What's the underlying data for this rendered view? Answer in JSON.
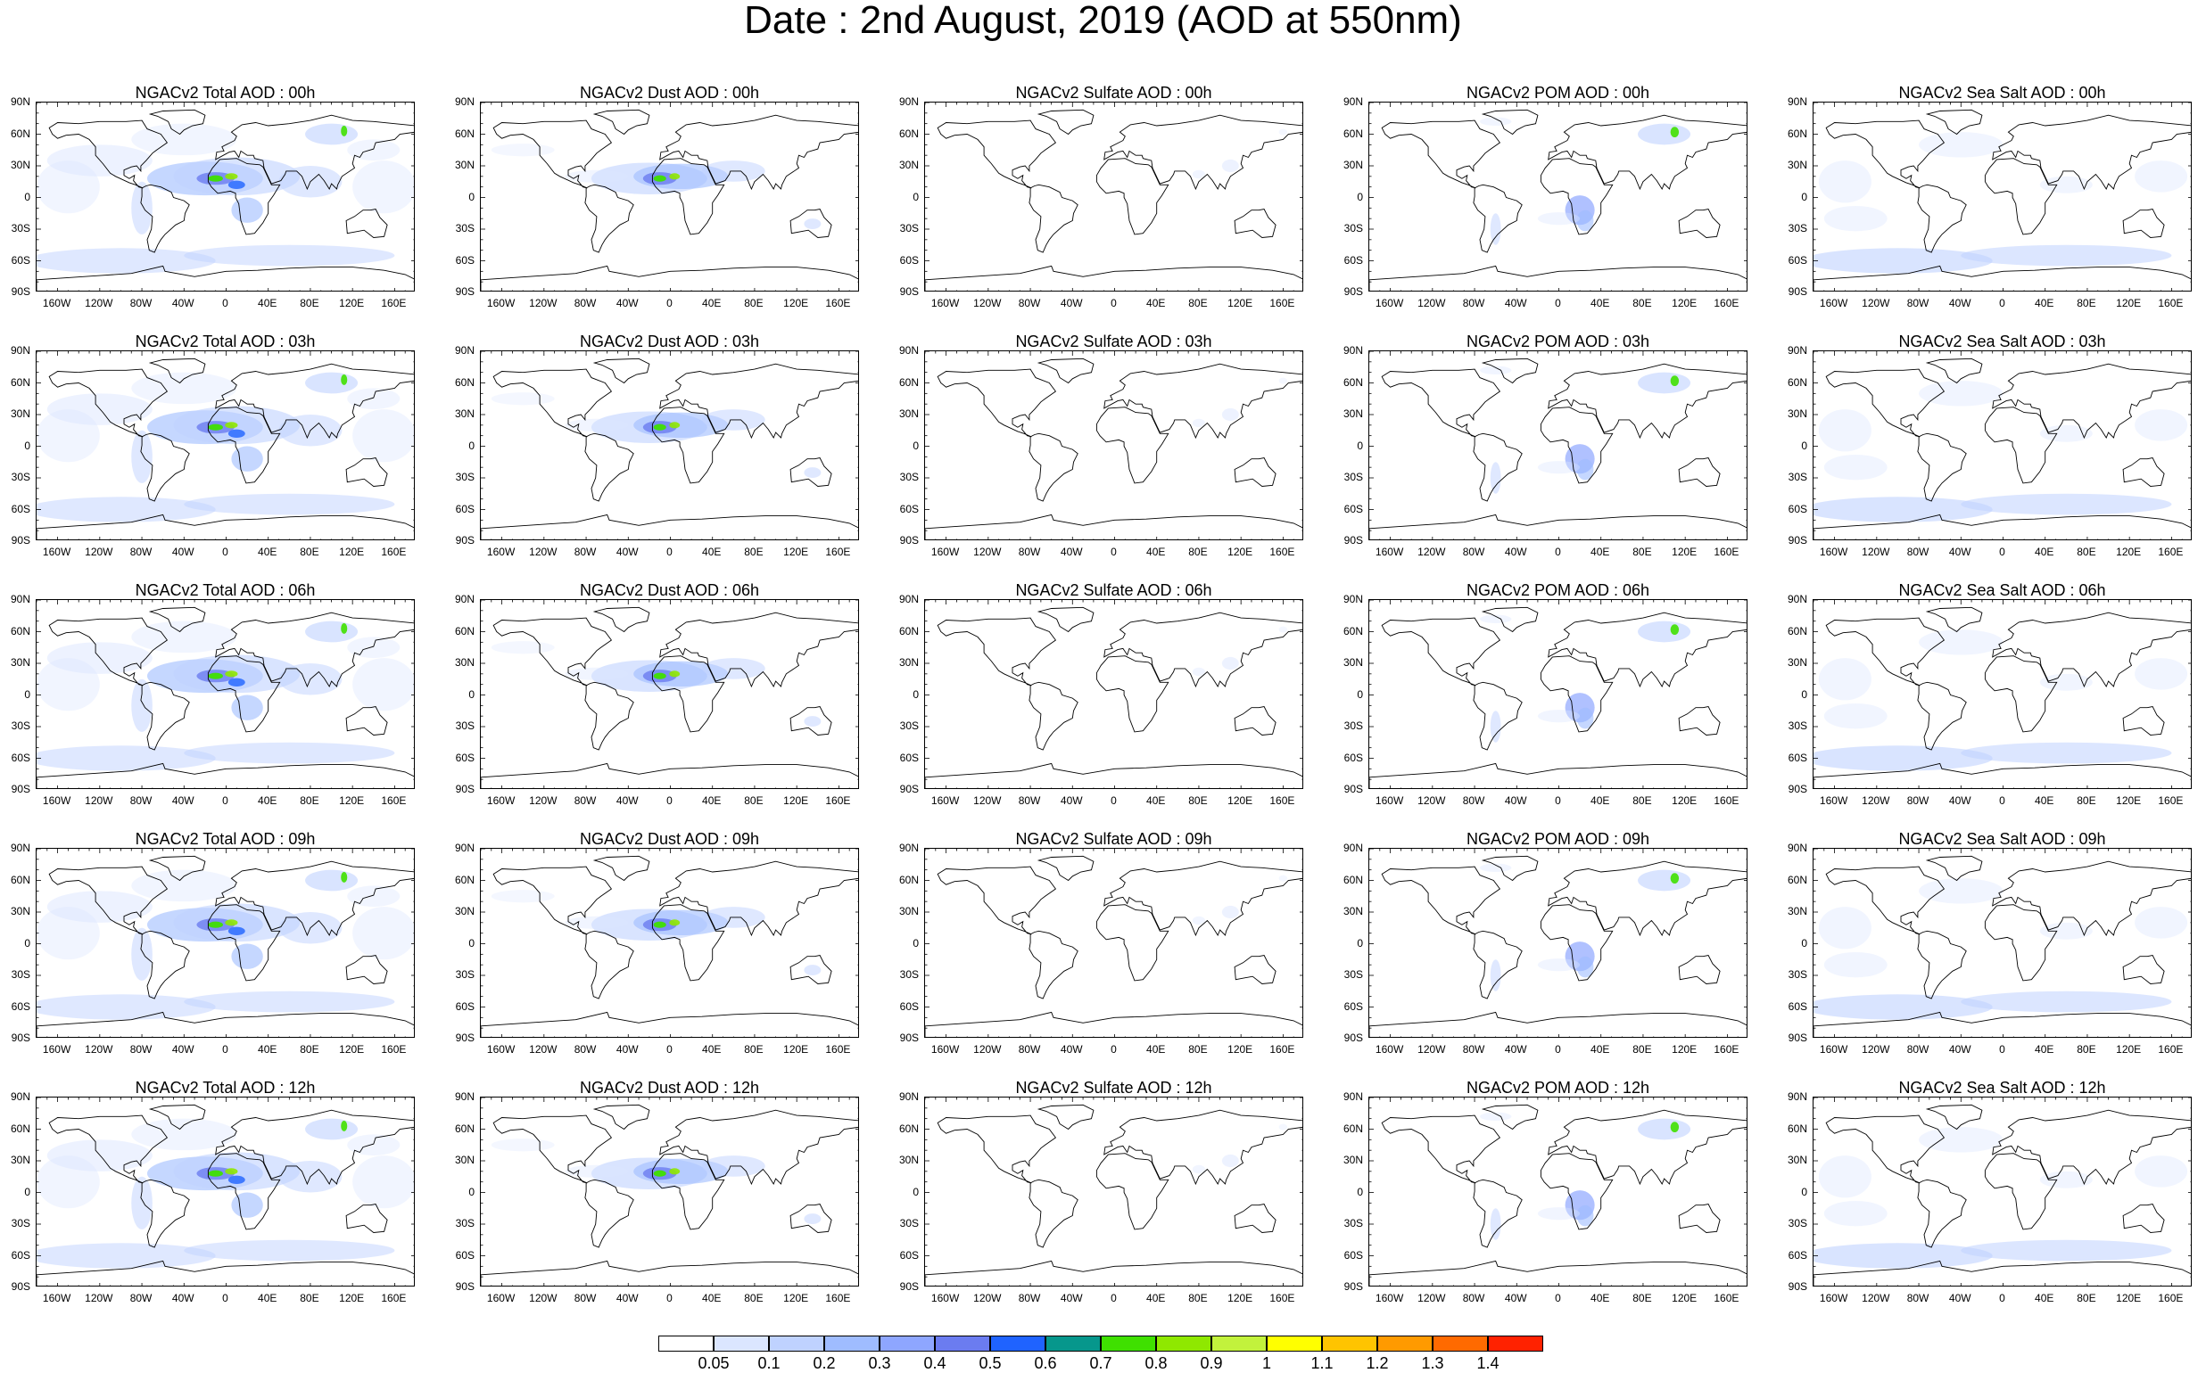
{
  "title": "Date : 2nd August, 2019 (AOD at 550nm)",
  "lat_labels": [
    "90N",
    "60N",
    "30N",
    "0",
    "30S",
    "60S",
    "90S"
  ],
  "lon_labels": [
    "160W",
    "120W",
    "80W",
    "40W",
    "0",
    "40E",
    "80E",
    "120E",
    "160E"
  ],
  "panel_titles": [
    [
      "NGACv2 Total AOD : 00h",
      "NGACv2 Dust AOD : 00h",
      "NGACv2 Sulfate AOD : 00h",
      "NGACv2 POM AOD : 00h",
      "NGACv2 Sea Salt AOD : 00h"
    ],
    [
      "NGACv2 Total AOD : 03h",
      "NGACv2 Dust AOD : 03h",
      "NGACv2 Sulfate AOD : 03h",
      "NGACv2 POM AOD : 03h",
      "NGACv2 Sea Salt AOD : 03h"
    ],
    [
      "NGACv2 Total AOD : 06h",
      "NGACv2 Dust AOD : 06h",
      "NGACv2 Sulfate AOD : 06h",
      "NGACv2 POM AOD : 06h",
      "NGACv2 Sea Salt AOD : 06h"
    ],
    [
      "NGACv2 Total AOD : 09h",
      "NGACv2 Dust AOD : 09h",
      "NGACv2 Sulfate AOD : 09h",
      "NGACv2 POM AOD : 09h",
      "NGACv2 Sea Salt  AOD : 09h"
    ],
    [
      "NGACv2 Total AOD  : 12h",
      "NGACv2 Dust AOD : 12h",
      "NGACv2 Sulfate AOD : 12h",
      "NGACv2 POM  AOD : 12h",
      "NGACv2 Sea Salt AOD : 12h"
    ]
  ],
  "colorbar": {
    "labels": [
      "0.05",
      "0.1",
      "0.2",
      "0.3",
      "0.4",
      "0.5",
      "0.6",
      "0.7",
      "0.8",
      "0.9",
      "1",
      "1.1",
      "1.2",
      "1.3",
      "1.4"
    ],
    "colors": [
      "#ffffff",
      "#dbe6ff",
      "#bfd2ff",
      "#9fbcff",
      "#8ea6ff",
      "#6b7cf0",
      "#1f63ff",
      "#06978c",
      "#3fe000",
      "#8fe800",
      "#c2f23c",
      "#ffff00",
      "#ffc400",
      "#ff9a00",
      "#ff6a00",
      "#ff2200"
    ]
  },
  "species_colors": {
    "total": "#9fbcff",
    "dust": "#a9c3ff",
    "sulfate": "#c9d9ff",
    "pom": "#8ea6ff",
    "seasalt": "#a9c3ff"
  }
}
